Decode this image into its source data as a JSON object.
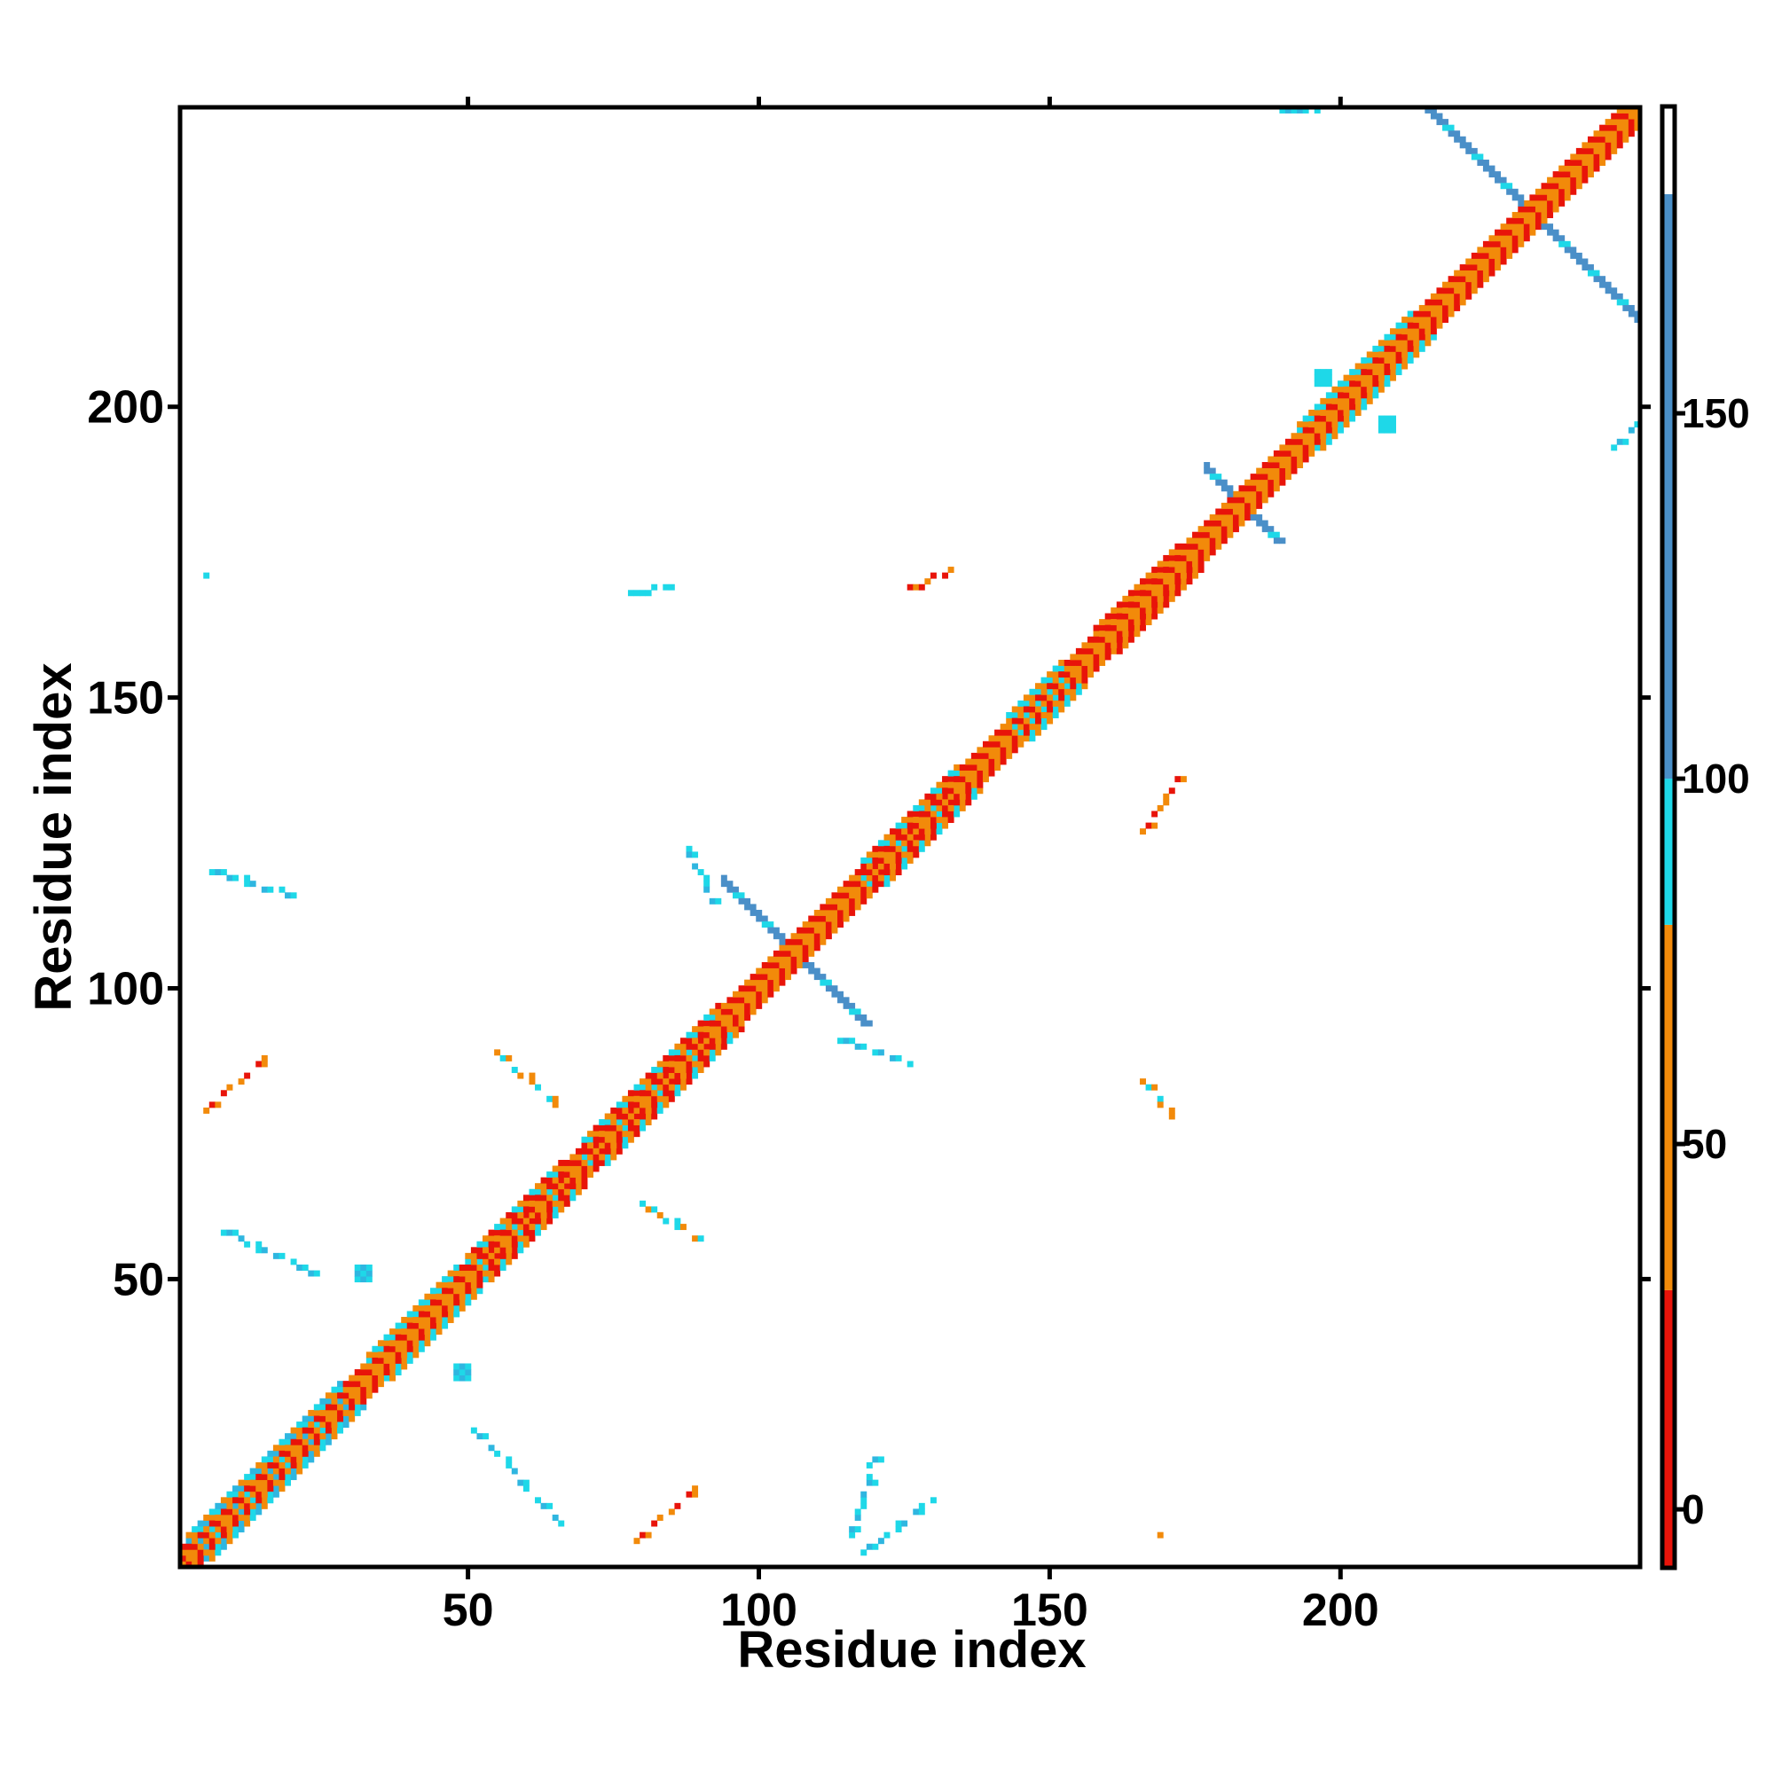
{
  "chart_data": {
    "type": "heatmap",
    "title": "",
    "xlabel": "Residue index",
    "ylabel": "Residue index",
    "xlim": [
      1,
      251
    ],
    "ylim": [
      1,
      251
    ],
    "x_ticks": [
      50,
      100,
      150,
      200
    ],
    "y_ticks": [
      50,
      100,
      150,
      200
    ],
    "grid": false,
    "colorbar": {
      "ticks": [
        0,
        50,
        100,
        150
      ],
      "range": [
        -8,
        192
      ],
      "bins": [
        {
          "from": -8,
          "to": 30,
          "color": "#e8140a"
        },
        {
          "from": 30,
          "to": 80,
          "color": "#f28a0a"
        },
        {
          "from": 80,
          "to": 100,
          "color": "#1ed8e8"
        },
        {
          "from": 100,
          "to": 180,
          "color": "#4a8fc8"
        },
        {
          "from": 180,
          "to": 192,
          "color": "#ffffff"
        }
      ]
    },
    "colors": {
      "red": "#e8140a",
      "orange": "#f28a0a",
      "cyan": "#1ed8e8",
      "skyblue": "#2fb6e0",
      "steelblue": "#4a8fc8"
    },
    "regions": [
      {
        "kind": "diagonal-band",
        "from": 1,
        "to": 251,
        "width": 3,
        "pattern": [
          "red",
          "orange"
        ]
      },
      {
        "kind": "helix",
        "from": 2,
        "to": 28,
        "colors": [
          "orange",
          "cyan",
          "skyblue"
        ]
      },
      {
        "kind": "helix",
        "from": 33,
        "to": 48,
        "colors": [
          "cyan",
          "orange"
        ]
      },
      {
        "kind": "helix",
        "from": 50,
        "to": 66,
        "colors": [
          "orange",
          "red",
          "cyan"
        ]
      },
      {
        "kind": "helix",
        "from": 70,
        "to": 93,
        "colors": [
          "orange",
          "red",
          "cyan"
        ]
      },
      {
        "kind": "helix",
        "from": 118,
        "to": 134,
        "colors": [
          "orange",
          "red",
          "cyan"
        ]
      },
      {
        "kind": "helix",
        "from": 143,
        "to": 152,
        "colors": [
          "orange",
          "cyan"
        ]
      },
      {
        "kind": "helix",
        "from": 158,
        "to": 172,
        "colors": [
          "red",
          "orange"
        ]
      },
      {
        "kind": "helix",
        "from": 193,
        "to": 212,
        "colors": [
          "cyan",
          "orange"
        ]
      },
      {
        "kind": "anti-diagonal",
        "center": [
          106,
          106
        ],
        "half_length": 12,
        "colors": [
          "steelblue",
          "cyan"
        ]
      },
      {
        "kind": "anti-diagonal",
        "center": [
          183,
          183
        ],
        "half_length": 6,
        "colors": [
          "steelblue",
          "cyan"
        ]
      },
      {
        "kind": "anti-diagonal",
        "center": [
          233,
          233
        ],
        "half_length": 22,
        "colors": [
          "steelblue",
          "cyan"
        ]
      },
      {
        "kind": "segment",
        "from": [
          6,
          120
        ],
        "to": [
          20,
          116
        ],
        "colors": [
          "cyan",
          "skyblue"
        ]
      },
      {
        "kind": "segment",
        "from": [
          116,
          6
        ],
        "to": [
          120,
          20
        ],
        "colors": [
          "cyan",
          "skyblue"
        ]
      },
      {
        "kind": "segment",
        "from": [
          8,
          58
        ],
        "to": [
          24,
          51
        ],
        "colors": [
          "cyan",
          "skyblue"
        ]
      },
      {
        "kind": "segment",
        "from": [
          51,
          24
        ],
        "to": [
          66,
          8
        ],
        "colors": [
          "cyan",
          "skyblue"
        ]
      },
      {
        "kind": "segment",
        "from": [
          118,
          3
        ],
        "to": [
          130,
          12
        ],
        "colors": [
          "cyan",
          "skyblue"
        ]
      },
      {
        "kind": "segment",
        "from": [
          5,
          79
        ],
        "to": [
          16,
          89
        ],
        "colors": [
          "orange",
          "red"
        ]
      },
      {
        "kind": "segment",
        "from": [
          79,
          5
        ],
        "to": [
          90,
          15
        ],
        "colors": [
          "orange",
          "red"
        ]
      },
      {
        "kind": "segment",
        "from": [
          55,
          89
        ],
        "to": [
          65,
          80
        ],
        "colors": [
          "orange",
          "cyan"
        ]
      },
      {
        "kind": "segment",
        "from": [
          80,
          63
        ],
        "to": [
          91,
          56
        ],
        "colors": [
          "cyan",
          "orange"
        ]
      },
      {
        "kind": "segment",
        "from": [
          114,
          91
        ],
        "to": [
          126,
          87
        ],
        "colors": [
          "cyan",
          "skyblue"
        ]
      },
      {
        "kind": "segment",
        "from": [
          88,
          124
        ],
        "to": [
          92,
          115
        ],
        "colors": [
          "cyan",
          "skyblue"
        ]
      },
      {
        "kind": "segment",
        "from": [
          78,
          168
        ],
        "to": [
          85,
          169
        ],
        "colors": [
          "cyan"
        ]
      },
      {
        "kind": "segment",
        "from": [
          126,
          169
        ],
        "to": [
          134,
          172
        ],
        "colors": [
          "red",
          "orange"
        ]
      },
      {
        "kind": "segment",
        "from": [
          166,
          127
        ],
        "to": [
          172,
          136
        ],
        "colors": [
          "orange",
          "red"
        ]
      },
      {
        "kind": "segment",
        "from": [
          166,
          84
        ],
        "to": [
          171,
          78
        ],
        "colors": [
          "orange",
          "cyan"
        ]
      },
      {
        "kind": "segment",
        "from": [
          190,
          251
        ],
        "to": [
          195,
          251
        ],
        "colors": [
          "cyan",
          "skyblue"
        ]
      },
      {
        "kind": "segment",
        "from": [
          247,
          193
        ],
        "to": [
          251,
          197
        ],
        "colors": [
          "cyan",
          "skyblue"
        ]
      },
      {
        "kind": "blob",
        "center": [
          32,
          51
        ],
        "size": 2,
        "colors": [
          "cyan",
          "skyblue"
        ]
      },
      {
        "kind": "blob",
        "center": [
          49,
          34
        ],
        "size": 2,
        "colors": [
          "cyan",
          "skyblue"
        ]
      },
      {
        "kind": "blob",
        "center": [
          5,
          171
        ],
        "size": 1,
        "colors": [
          "cyan"
        ]
      },
      {
        "kind": "blob",
        "center": [
          169,
          6
        ],
        "size": 1,
        "colors": [
          "orange"
        ]
      },
      {
        "kind": "blob",
        "center": [
          197,
          205
        ],
        "size": 2,
        "colors": [
          "cyan"
        ]
      },
      {
        "kind": "blob",
        "center": [
          208,
          197
        ],
        "size": 2,
        "colors": [
          "cyan"
        ]
      }
    ]
  }
}
